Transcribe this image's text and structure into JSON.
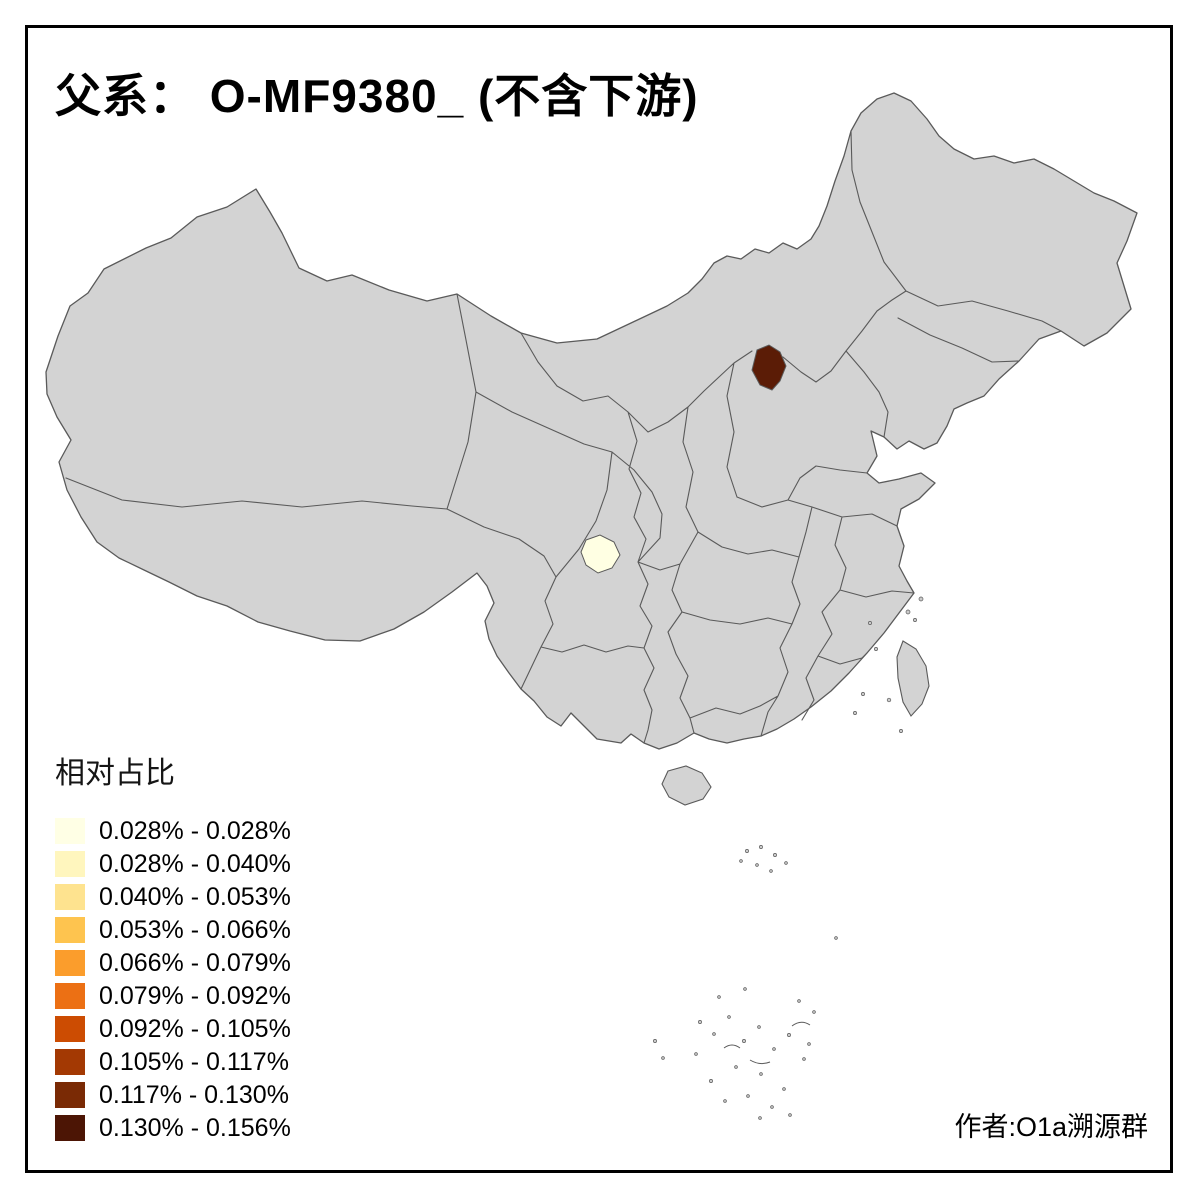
{
  "title": "父系： O-MF9380_ (不含下游)",
  "legend": {
    "title": "相对占比",
    "items": [
      {
        "label": "0.028% - 0.028%",
        "color": "#FFFFE5"
      },
      {
        "label": "0.028% - 0.040%",
        "color": "#FFF6BE"
      },
      {
        "label": "0.040% - 0.053%",
        "color": "#FEE38F"
      },
      {
        "label": "0.053% - 0.066%",
        "color": "#FEC44F"
      },
      {
        "label": "0.066% - 0.079%",
        "color": "#FB9D2C"
      },
      {
        "label": "0.079% - 0.092%",
        "color": "#EC7014"
      },
      {
        "label": "0.092% - 0.105%",
        "color": "#CC4C02"
      },
      {
        "label": "0.105% - 0.117%",
        "color": "#A33903"
      },
      {
        "label": "0.117% - 0.130%",
        "color": "#7A2A05"
      },
      {
        "label": "0.130% - 0.156%",
        "color": "#4C1505"
      }
    ]
  },
  "map": {
    "base_color": "#D3D3D3",
    "border_color": "#5A5A5A",
    "background": "#FFFFFF",
    "regions": [
      {
        "name": "beijing-area",
        "range": "0.130% - 0.156%",
        "color": "#5B1C06"
      },
      {
        "name": "sichuan-area",
        "range": "0.028% - 0.028%",
        "color": "#FFFFE3"
      }
    ]
  },
  "author": "作者:O1a溯源群"
}
